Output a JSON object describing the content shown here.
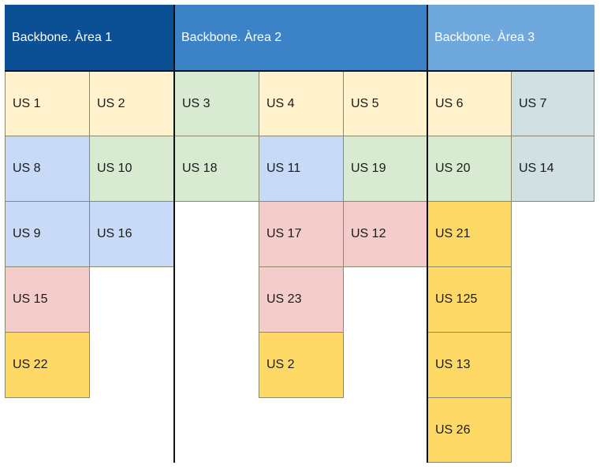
{
  "headers": {
    "area1": "Backbone. Àrea 1",
    "area2": "Backbone. Àrea 2",
    "area3": "Backbone. Àrea 3"
  },
  "colors": {
    "header_area1": "#0b4f94",
    "header_area2": "#3b82c6",
    "header_area3": "#6fa8dc",
    "yellow": "#fff2cc",
    "green": "#d9ead3",
    "blue": "#c9daf8",
    "gray": "#d0e0e3",
    "red": "#f4cccc",
    "gold": "#ffd966"
  },
  "cards": {
    "us1": "US 1",
    "us2a": "US 2",
    "us3": "US 3",
    "us4": "US 4",
    "us5": "US 5",
    "us6": "US 6",
    "us7": "US 7",
    "us8": "US 8",
    "us10": "US 10",
    "us18": "US 18",
    "us11": "US 11",
    "us19": "US 19",
    "us20": "US 20",
    "us14": "US 14",
    "us9": "US 9",
    "us16": "US 16",
    "us17": "US 17",
    "us12": "US 12",
    "us21": "US 21",
    "us15": "US 15",
    "us23": "US 23",
    "us125": "US 125",
    "us22": "US 22",
    "us2b": "US 2",
    "us13": "US 13",
    "us26": "US 26"
  }
}
